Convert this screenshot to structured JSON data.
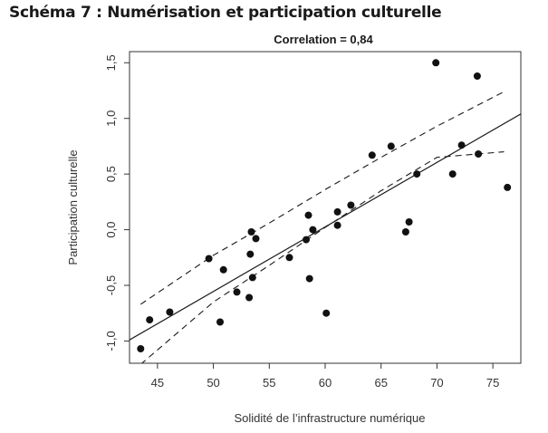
{
  "page": {
    "title": "Schéma 7 : Numérisation et participation culturelle"
  },
  "chart_data": {
    "type": "scatter",
    "title": "Correlation = 0,84",
    "xlabel": "Solidité de l’infrastructure numérique",
    "ylabel": "Participation culturelle",
    "xlim": [
      42.5,
      77.5
    ],
    "ylim": [
      -1.2,
      1.6
    ],
    "x_ticks": [
      45,
      50,
      55,
      60,
      65,
      70,
      75
    ],
    "x_tick_labels": [
      "45",
      "50",
      "55",
      "60",
      "65",
      "70",
      "75"
    ],
    "y_ticks": [
      -1.0,
      -0.5,
      0.0,
      0.5,
      1.0,
      1.5
    ],
    "y_tick_labels": [
      "-1,0",
      "-0,5",
      "0,0",
      "0,5",
      "1,0",
      "1,5"
    ],
    "grid": false,
    "legend": "none",
    "points": [
      {
        "x": 43.5,
        "y": -1.07
      },
      {
        "x": 44.3,
        "y": -0.81
      },
      {
        "x": 46.1,
        "y": -0.74
      },
      {
        "x": 49.6,
        "y": -0.26
      },
      {
        "x": 50.6,
        "y": -0.83
      },
      {
        "x": 50.9,
        "y": -0.36
      },
      {
        "x": 52.1,
        "y": -0.56
      },
      {
        "x": 53.2,
        "y": -0.61
      },
      {
        "x": 53.3,
        "y": -0.22
      },
      {
        "x": 53.4,
        "y": -0.02
      },
      {
        "x": 53.5,
        "y": -0.43
      },
      {
        "x": 53.8,
        "y": -0.08
      },
      {
        "x": 56.8,
        "y": -0.25
      },
      {
        "x": 58.3,
        "y": -0.09
      },
      {
        "x": 58.5,
        "y": 0.13
      },
      {
        "x": 58.6,
        "y": -0.44
      },
      {
        "x": 58.9,
        "y": 0.0
      },
      {
        "x": 60.1,
        "y": -0.75
      },
      {
        "x": 61.1,
        "y": 0.16
      },
      {
        "x": 61.1,
        "y": 0.04
      },
      {
        "x": 62.3,
        "y": 0.22
      },
      {
        "x": 64.2,
        "y": 0.67
      },
      {
        "x": 65.9,
        "y": 0.75
      },
      {
        "x": 67.2,
        "y": -0.02
      },
      {
        "x": 67.5,
        "y": 0.07
      },
      {
        "x": 68.2,
        "y": 0.5
      },
      {
        "x": 69.9,
        "y": 1.5
      },
      {
        "x": 71.4,
        "y": 0.5
      },
      {
        "x": 72.2,
        "y": 0.76
      },
      {
        "x": 73.6,
        "y": 1.38
      },
      {
        "x": 73.7,
        "y": 0.68
      },
      {
        "x": 76.3,
        "y": 0.38
      }
    ],
    "fit_line": {
      "x": [
        42.5,
        77.5
      ],
      "y": [
        -0.99,
        1.04
      ]
    },
    "confidence_upper": {
      "x": [
        43.5,
        50,
        55,
        60,
        65,
        70,
        76
      ],
      "y": [
        -0.67,
        -0.23,
        0.06,
        0.36,
        0.65,
        0.93,
        1.24
      ]
    },
    "confidence_lower": {
      "x": [
        43.5,
        50,
        55,
        60,
        65,
        70,
        76
      ],
      "y": [
        -1.21,
        -0.65,
        -0.32,
        0.02,
        0.35,
        0.65,
        0.7
      ]
    },
    "colors": {
      "points": "#111111",
      "lines": "#1a1a1a"
    }
  }
}
